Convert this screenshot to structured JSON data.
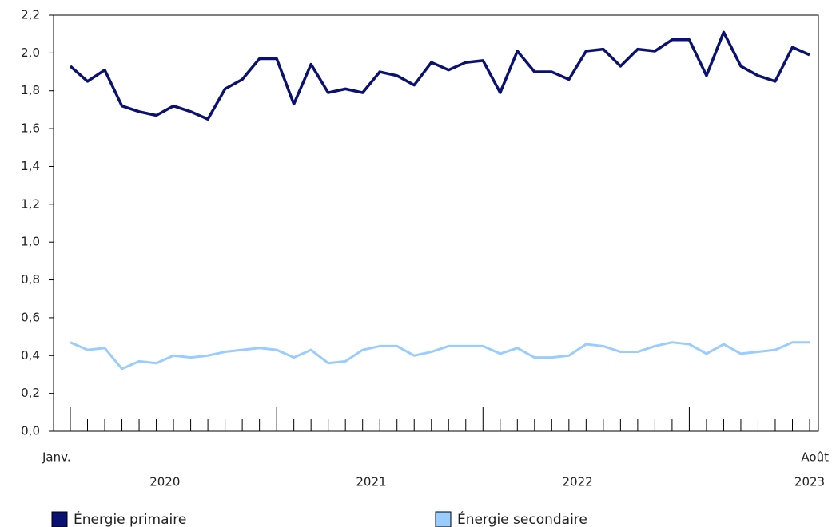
{
  "chart_data": {
    "type": "line",
    "categories": [
      "Janv.",
      null,
      null,
      null,
      null,
      null,
      null,
      null,
      null,
      null,
      null,
      null,
      null,
      null,
      null,
      null,
      null,
      null,
      null,
      null,
      null,
      null,
      null,
      null,
      null,
      null,
      null,
      null,
      null,
      null,
      null,
      null,
      null,
      null,
      null,
      null,
      null,
      null,
      null,
      null,
      null,
      null,
      null,
      "Août"
    ],
    "year_labels": [
      "2020",
      "2021",
      "2022",
      "2023"
    ],
    "series": [
      {
        "name": "Énergie primaire",
        "color": "#0a1172",
        "values": [
          1.93,
          1.85,
          1.91,
          1.72,
          1.69,
          1.67,
          1.72,
          1.69,
          1.65,
          1.81,
          1.86,
          1.97,
          1.97,
          1.73,
          1.94,
          1.79,
          1.81,
          1.79,
          1.9,
          1.88,
          1.83,
          1.95,
          1.91,
          1.95,
          1.96,
          1.79,
          2.01,
          1.9,
          1.9,
          1.86,
          2.01,
          2.02,
          1.93,
          2.02,
          2.01,
          2.07,
          2.07,
          1.88,
          2.11,
          1.93,
          1.88,
          1.85,
          2.03,
          1.99
        ]
      },
      {
        "name": "Énergie secondaire",
        "color": "#99ccff",
        "values": [
          0.47,
          0.43,
          0.44,
          0.33,
          0.37,
          0.36,
          0.4,
          0.39,
          0.4,
          0.42,
          0.43,
          0.44,
          0.43,
          0.39,
          0.43,
          0.36,
          0.37,
          0.43,
          0.45,
          0.45,
          0.4,
          0.42,
          0.45,
          0.45,
          0.45,
          0.41,
          0.44,
          0.39,
          0.39,
          0.4,
          0.46,
          0.45,
          0.42,
          0.42,
          0.45,
          0.47,
          0.46,
          0.41,
          0.46,
          0.41,
          0.42,
          0.43,
          0.47,
          0.47
        ]
      }
    ],
    "ylim": [
      0,
      2.2
    ],
    "yticks": [
      {
        "value": 0,
        "label": "0,0"
      },
      {
        "value": 0.2,
        "label": "0,2"
      },
      {
        "value": 0.4,
        "label": "0,4"
      },
      {
        "value": 0.6,
        "label": "0,6"
      },
      {
        "value": 0.8,
        "label": "0,8"
      },
      {
        "value": 1.0,
        "label": "1,0"
      },
      {
        "value": 1.2,
        "label": "1,2"
      },
      {
        "value": 1.4,
        "label": "1,4"
      },
      {
        "value": 1.6,
        "label": "1,6"
      },
      {
        "value": 1.8,
        "label": "1,8"
      },
      {
        "value": 2.0,
        "label": "2,0"
      },
      {
        "value": 2.2,
        "label": "2,2"
      }
    ],
    "grid": false
  }
}
